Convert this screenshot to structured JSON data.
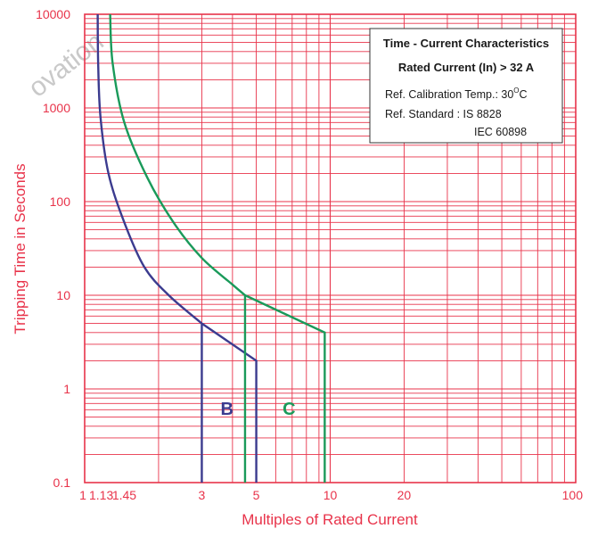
{
  "chart_data": {
    "type": "line",
    "title": "Time - Current Characteristics",
    "subtitle": "Rated Current (In) > 32 A",
    "annotations": {
      "calibration_prefix": "Ref. Calibration Temp.: 30",
      "calibration_sup": "O",
      "calibration_suffix": "C",
      "standard_line1": "Ref. Standard : IS 8828",
      "standard_line2": "IEC 60898"
    },
    "watermark": "ovation",
    "xlabel": "Multiples of Rated Current",
    "ylabel": "Tripping Time in Seconds",
    "x_scale": "log",
    "y_scale": "log",
    "xlim": [
      1,
      100
    ],
    "ylim": [
      0.1,
      10000
    ],
    "grid": true,
    "x_ticks": [
      {
        "value": 1,
        "label": "1"
      },
      {
        "value": 1.13,
        "label": "1.13"
      },
      {
        "value": 1.45,
        "label": "1.45"
      },
      {
        "value": 3,
        "label": "3"
      },
      {
        "value": 5,
        "label": "5"
      },
      {
        "value": 10,
        "label": "10"
      },
      {
        "value": 20,
        "label": "20"
      },
      {
        "value": 100,
        "label": "100"
      }
    ],
    "y_ticks": [
      {
        "value": 0.1,
        "label": "0.1"
      },
      {
        "value": 1,
        "label": "1"
      },
      {
        "value": 10,
        "label": "10"
      },
      {
        "value": 100,
        "label": "100"
      },
      {
        "value": 1000,
        "label": "1000"
      },
      {
        "value": 10000,
        "label": "10000"
      }
    ],
    "series": [
      {
        "name": "B",
        "color": "#3b3b8f",
        "label_at": [
          3.8,
          0.53
        ],
        "points": [
          [
            1.13,
            10000
          ],
          [
            1.135,
            3000
          ],
          [
            1.16,
            800
          ],
          [
            1.25,
            200
          ],
          [
            1.45,
            60
          ],
          [
            1.75,
            20
          ],
          [
            2.2,
            10
          ],
          [
            3,
            5
          ],
          [
            5,
            2
          ],
          [
            5,
            0.1
          ]
        ],
        "drop": [
          [
            3,
            5
          ],
          [
            3,
            0.1
          ]
        ]
      },
      {
        "name": "C",
        "color": "#1a9a5a",
        "label_at": [
          6.8,
          0.53
        ],
        "points": [
          [
            1.27,
            10000
          ],
          [
            1.3,
            3000
          ],
          [
            1.45,
            700
          ],
          [
            1.8,
            180
          ],
          [
            2.3,
            60
          ],
          [
            3,
            25
          ],
          [
            4,
            13
          ],
          [
            4.5,
            10
          ],
          [
            9.5,
            4
          ],
          [
            9.5,
            0.1
          ]
        ],
        "drop": [
          [
            4.5,
            10
          ],
          [
            4.5,
            0.1
          ]
        ]
      }
    ],
    "colors": {
      "grid": "#e8334a",
      "axis_text": "#e8334a"
    }
  }
}
